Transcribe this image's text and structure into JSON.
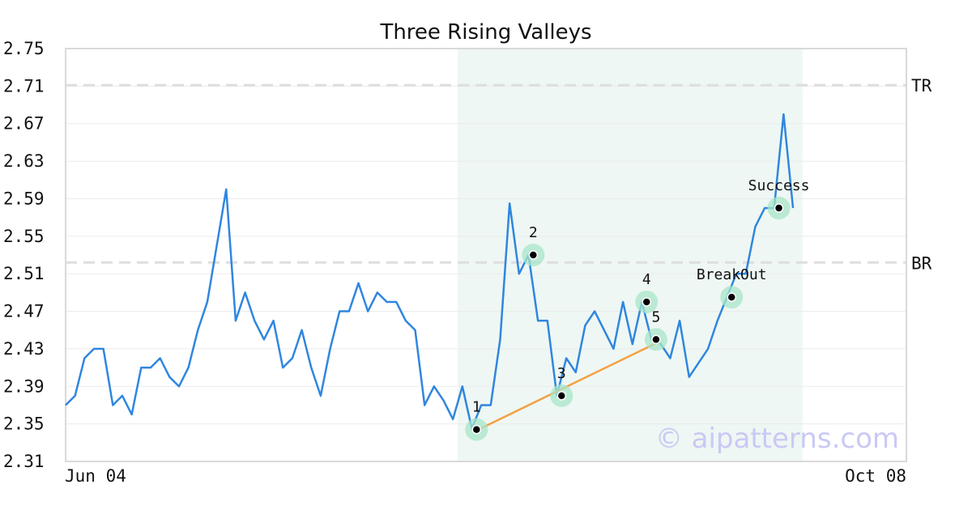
{
  "chart_data": {
    "type": "line",
    "title": "Three Rising Valleys",
    "xlabel": "",
    "ylabel": "",
    "ylim": [
      2.31,
      2.75
    ],
    "y_ticks": [
      "2.75",
      "2.71",
      "2.67",
      "2.63",
      "2.59",
      "2.55",
      "2.51",
      "2.47",
      "2.43",
      "2.39",
      "2.35",
      "2.31"
    ],
    "x_tick_labels": [
      {
        "label": "Jun 04",
        "index": 0
      },
      {
        "label": "Oct 08",
        "index": 89
      }
    ],
    "grid": true,
    "series": [
      {
        "color": "#2f86e0",
        "values": [
          2.37,
          2.38,
          2.42,
          2.43,
          2.43,
          2.37,
          2.38,
          2.36,
          2.41,
          2.41,
          2.42,
          2.4,
          2.39,
          2.41,
          2.45,
          2.48,
          2.54,
          2.6,
          2.46,
          2.49,
          2.46,
          2.44,
          2.46,
          2.41,
          2.42,
          2.45,
          2.41,
          2.38,
          2.43,
          2.47,
          2.47,
          2.5,
          2.47,
          2.49,
          2.48,
          2.48,
          2.46,
          2.45,
          2.37,
          2.39,
          2.375,
          2.355,
          2.39,
          2.345,
          2.37,
          2.37,
          2.44,
          2.585,
          2.51,
          2.53,
          2.46,
          2.46,
          2.38,
          2.42,
          2.405,
          2.455,
          2.47,
          2.45,
          2.43,
          2.48,
          2.435,
          2.48,
          2.44,
          2.435,
          2.42,
          2.46,
          2.4,
          2.415,
          2.43,
          2.46,
          2.485,
          2.51,
          2.51,
          2.56,
          2.58,
          2.58,
          2.68,
          2.58
        ]
      }
    ],
    "highlight_region": {
      "x_start": 41.5,
      "x_end": 78,
      "color": "#eef7f3"
    },
    "levels": [
      {
        "label": "TR",
        "value": 2.711
      },
      {
        "label": "BR",
        "value": 2.522
      }
    ],
    "trendline": {
      "from": {
        "x": 43.5,
        "y": 2.343
      },
      "to": {
        "x": 62.5,
        "y": 2.436
      },
      "color": "#f5a042"
    },
    "pattern_points": [
      {
        "label": "1",
        "x": 43.5,
        "y": 2.344
      },
      {
        "label": "2",
        "x": 49.5,
        "y": 2.53
      },
      {
        "label": "3",
        "x": 52.5,
        "y": 2.38
      },
      {
        "label": "4",
        "x": 61.5,
        "y": 2.48
      },
      {
        "label": "5",
        "x": 62.5,
        "y": 2.44
      },
      {
        "label": "BreakOut",
        "x": 70.5,
        "y": 2.485
      },
      {
        "label": "Success",
        "x": 75.5,
        "y": 2.58
      }
    ],
    "watermark": "© aipatterns.com"
  }
}
